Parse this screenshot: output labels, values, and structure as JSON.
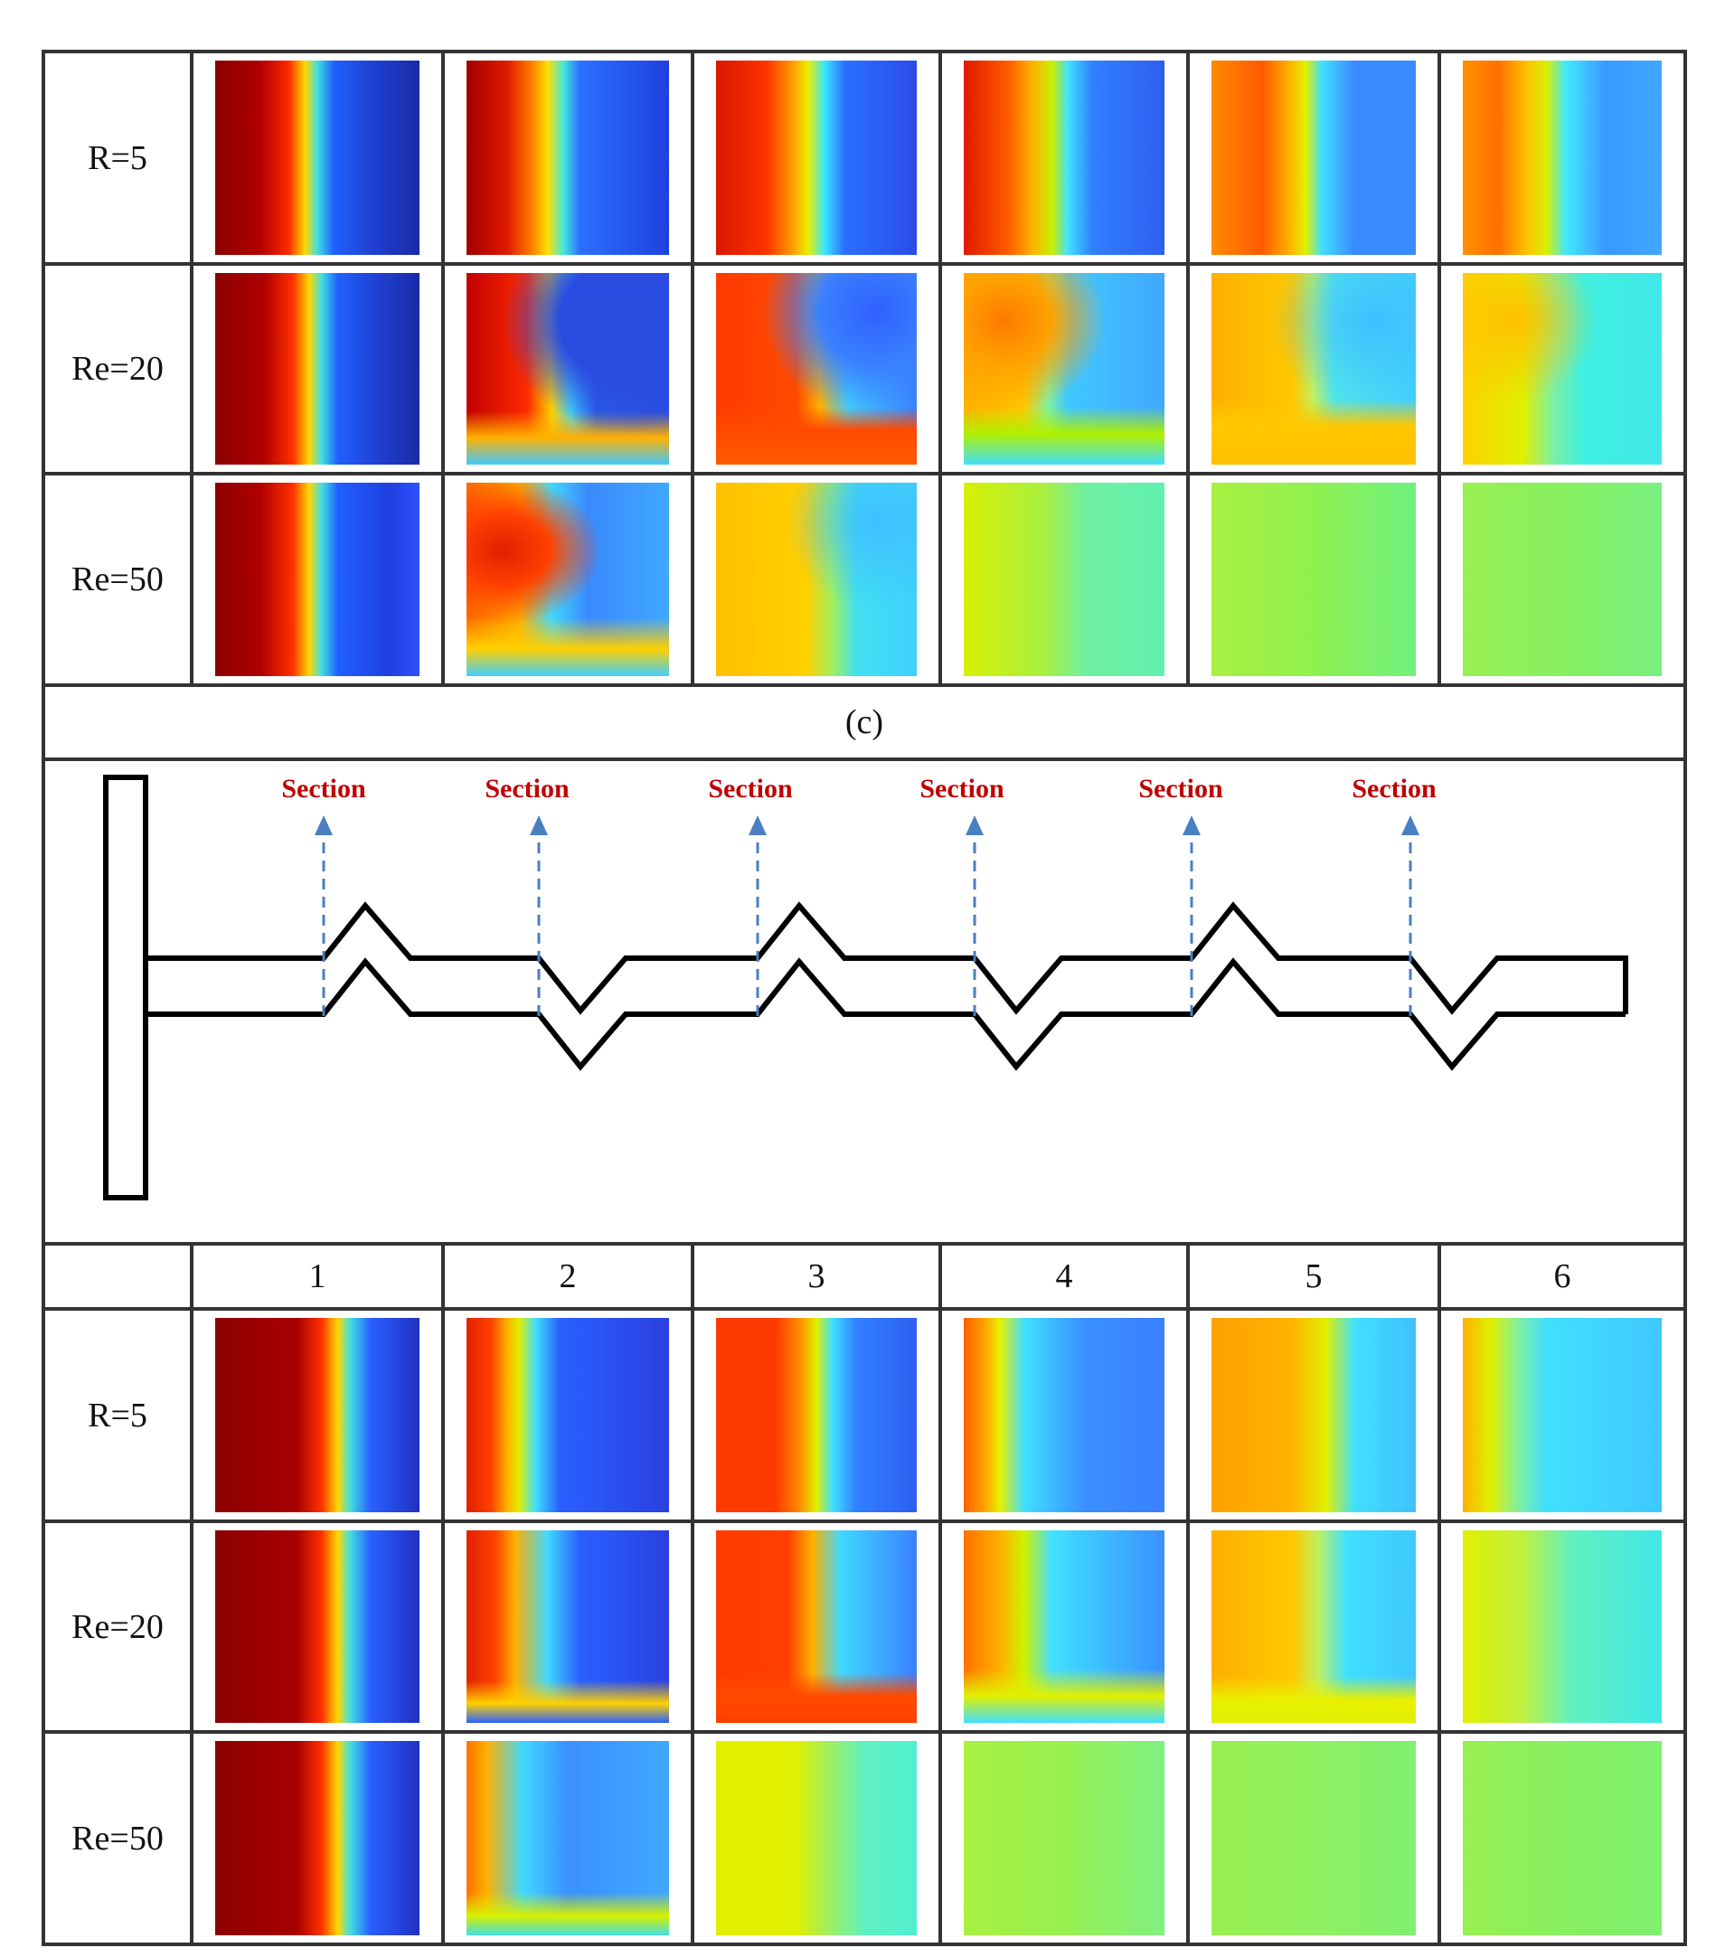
{
  "top_table": {
    "rows": [
      {
        "label": "R=5",
        "cells": [
          {
            "bg": "linear-gradient(90deg,#8b0000 0%,#b00000 22%,#ff2a00 36%,#ffd800 44%,#40e0e0 50%,#2060ff 58%,#1f3fd0 78%,#1a2aa8 100%)"
          },
          {
            "bg": "linear-gradient(90deg,#a00000 0%,#e01a00 20%,#ff7a00 32%,#ffe000 40%,#40e8e0 48%,#2a70ff 56%,#2040e0 100%)"
          },
          {
            "bg": "linear-gradient(90deg,#d81800 0%,#ff3200 25%,#ff9a00 38%,#e8f000 46%,#38e8ff 54%,#2a70ff 64%,#2a4ce8 100%)"
          },
          {
            "bg": "linear-gradient(90deg,#e01800 0%,#ff5a00 22%,#ffb000 34%,#c8f000 44%,#40e0ff 52%,#3080ff 64%,#2e5ef0 100%)"
          },
          {
            "bg": "linear-gradient(90deg,#ff8a00 0%,#ff5a00 25%,#ffb000 38%,#e0f000 46%,#40e0ff 54%,#3a8aff 70%,#3a8aff 100%)"
          },
          {
            "bg": "linear-gradient(90deg,#ff9000 0%,#ff7000 18%,#ffc000 32%,#d8f000 42%,#40e8ff 52%,#3a98ff 72%,#40a8ff 100%)"
          }
        ]
      },
      {
        "label": "Re=20",
        "cells": [
          {
            "bg": "linear-gradient(90deg,#8b0000 0%,#b00000 24%,#ff3000 38%,#ffd800 46%,#40e0e0 52%,#2060ff 60%,#1f3fd0 80%,#1a2aa8 100%)"
          },
          {
            "bg": "radial-gradient(ellipse at 80% 25%,#2a4ce0 0%,#2a4ce0 30%,transparent 55%),linear-gradient(0deg,#40c8ff 0%,#ffb000 14%,transparent 28%),linear-gradient(90deg,#c00000 0%,#ff2a00 30%,#ffd000 42%,#40d8ff 52%,#2a5ce8 64%,#2a4ce0 100%)"
          },
          {
            "bg": "radial-gradient(ellipse at 80% 20%,#3060ff 0%,#3a80ff 25%,transparent 50%),linear-gradient(0deg,#ff5a00 0%,#ff4a00 18%,transparent 30%),linear-gradient(90deg,#ff3a00 0%,#ff4a00 40%,#ffb000 52%,#40d8ff 66%,#3a80ff 100%)"
          },
          {
            "bg": "radial-gradient(ellipse at 20% 25%,#ff7a00 0%,#ffa000 20%,transparent 45%),linear-gradient(0deg,#40e0ff 0%,#b0f000 16%,transparent 30%),linear-gradient(90deg,#ffb000 0%,#ffc800 30%,#80f0a0 42%,#40c8ff 52%,#40a8ff 100%)"
          },
          {
            "bg": "radial-gradient(ellipse at 80% 25%,#40c0ff 0%,transparent 45%),linear-gradient(0deg,#ffc000 0%,#ffc800 20%,transparent 34%),linear-gradient(90deg,#ffb000 0%,#ffc800 40%,#c0f060 50%,#50e8e8 60%,#40d0ff 100%)"
          },
          {
            "bg": "radial-gradient(ellipse at 25% 25%,#ffc000 0%,transparent 40%),linear-gradient(90deg,#ffd000 0%,#e0f000 30%,#80f0a0 45%,#40f0e0 60%,#40e8e8 100%)"
          }
        ]
      },
      {
        "label": "Re=50",
        "cells": [
          {
            "bg": "linear-gradient(0deg,rgba(255,120,0,0.0) 0%,transparent 100%),linear-gradient(90deg,#8b0000 0%,#b00000 22%,#ff3000 38%,#ffd800 46%,#40e0e0 52%,#2060ff 60%,#2040e0 85%,#3050ff 100%)"
          },
          {
            "bg": "radial-gradient(ellipse at 18% 35%,#e02000 0%,#ff4000 20%,transparent 42%),linear-gradient(0deg,#40d0ff 0%,#ffd000 14%,transparent 30%),linear-gradient(90deg,#ff6a00 0%,#ffb000 26%,#40d8ff 42%,#3a8aff 60%,#40a8ff 100%)"
          },
          {
            "bg": "radial-gradient(ellipse at 80% 20%,#40c0ff 0%,transparent 40%),linear-gradient(90deg,#ffc000 0%,#ffd000 45%,#a0f060 58%,#40e0f0 70%,#40d0ff 100%)"
          },
          {
            "bg": "linear-gradient(90deg,#d8f000 0%,#a8f040 40%,#70f0a0 60%,#60f0b0 100%)"
          },
          {
            "bg": "linear-gradient(90deg,#a8f040 0%,#90f050 50%,#70f080 100%)"
          },
          {
            "bg": "linear-gradient(90deg,#98f050 0%,#88f060 50%,#78f080 100%)"
          }
        ]
      }
    ]
  },
  "caption_c": "(c)",
  "diagram": {
    "section_label": "Section",
    "label_color": "#c00000",
    "arrow_color": "#4a7fc0",
    "section_count": 6
  },
  "bottom_table": {
    "headers": [
      "1",
      "2",
      "3",
      "4",
      "5",
      "6"
    ],
    "rows": [
      {
        "label": "R=5",
        "cells": [
          {
            "bg": "linear-gradient(90deg,#8b0000 0%,#a80000 40%,#ff3000 52%,#ffd800 60%,#40e0e0 66%,#2a60ff 76%,#2030c0 100%)"
          },
          {
            "bg": "linear-gradient(90deg,#e02000 0%,#ff4000 12%,#ffb000 20%,#e0f000 26%,#40e0ff 34%,#2a60ff 46%,#2a40e0 100%)"
          },
          {
            "bg": "linear-gradient(90deg,#ff3a00 0%,#ff3a00 30%,#ff9000 42%,#e0f000 50%,#40e0ff 58%,#3080ff 70%,#2e5ef0 100%)"
          },
          {
            "bg": "linear-gradient(90deg,#ff6000 0%,#ffa000 10%,#e8f000 18%,#40e0ff 30%,#3a90ff 60%,#3a80ff 100%)"
          },
          {
            "bg": "linear-gradient(90deg,#ffa000 0%,#ffb400 40%,#e0f000 56%,#40e0ff 70%,#40c0ff 100%)"
          },
          {
            "bg": "linear-gradient(90deg,#ffb000 0%,#e0f000 14%,#80f0a0 28%,#40e0ff 42%,#40c8ff 100%)"
          }
        ]
      },
      {
        "label": "Re=20",
        "cells": [
          {
            "bg": "linear-gradient(90deg,#8b0000 0%,#a80000 40%,#ff3000 52%,#ffd800 60%,#40e0e0 66%,#2a60ff 76%,#2030c0 100%)"
          },
          {
            "bg": "linear-gradient(0deg,#2a60ff 0%,#ffd000 10%,transparent 22%),linear-gradient(90deg,#e02000 0%,#ff4000 14%,#ffb000 24%,#40d8ff 40%,#2a60ff 56%,#2a40e0 100%)"
          },
          {
            "bg": "linear-gradient(0deg,#ff4000 0%,#ff4a00 14%,transparent 26%),linear-gradient(90deg,#ff3a00 0%,#ff4000 36%,#ffb000 48%,#40d8ff 62%,#3a80ff 100%)"
          },
          {
            "bg": "linear-gradient(0deg,#40e0ff 0%,#e0f000 14%,transparent 28%),linear-gradient(90deg,#ff7000 0%,#ffb000 18%,#d0f000 30%,#40e0ff 44%,#3a90ff 100%)"
          },
          {
            "bg": "linear-gradient(0deg,#e0f000 0%,#e8f000 12%,transparent 24%),linear-gradient(90deg,#ffb000 0%,#ffc800 40%,#c0f060 52%,#40e0ff 66%,#40c8ff 100%)"
          },
          {
            "bg": "linear-gradient(90deg,#e0f000 0%,#c0f040 30%,#60f0c0 55%,#40e8e8 100%)"
          }
        ]
      },
      {
        "label": "Re=50",
        "cells": [
          {
            "bg": "linear-gradient(90deg,#8b0000 0%,#a80000 40%,#ff3000 52%,#ffd800 60%,#40e0e0 66%,#2a60ff 76%,#2030c0 100%)"
          },
          {
            "bg": "linear-gradient(0deg,#40e0e0 0%,#d8f000 10%,transparent 22%),linear-gradient(90deg,#ff7000 0%,#ffb000 10%,#40d8ff 28%,#3a90ff 50%,#40a8ff 100%)"
          },
          {
            "bg": "linear-gradient(90deg,#e0f000 0%,#e0f000 40%,#a0f060 56%,#60f0c0 74%,#50f0d0 100%)"
          },
          {
            "bg": "linear-gradient(90deg,#a8f040 0%,#98f050 50%,#80f080 100%)"
          },
          {
            "bg": "linear-gradient(90deg,#98f050 0%,#90f060 50%,#80f070 100%)"
          },
          {
            "bg": "linear-gradient(90deg,#98f050 0%,#88f060 50%,#80f070 100%)"
          }
        ]
      }
    ]
  }
}
